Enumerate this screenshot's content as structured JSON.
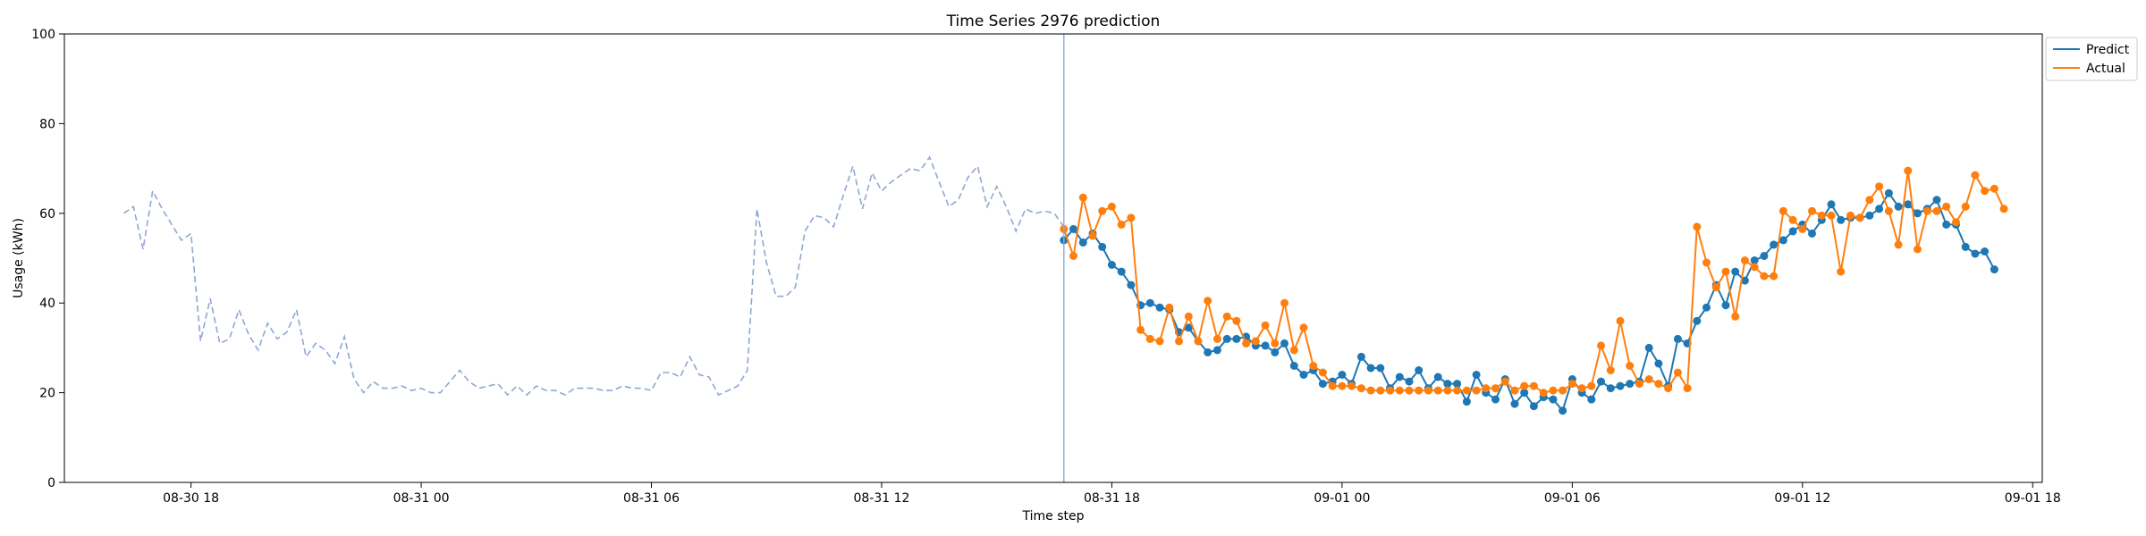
{
  "chart_data": {
    "type": "line",
    "title": "Time Series 2976 prediction",
    "xlabel": "Time step",
    "ylabel": "Usage (kWh)",
    "ylim": [
      0,
      100
    ],
    "xlim": [
      "08-30 14:42",
      "09-01 18:15"
    ],
    "yticks": [
      0,
      20,
      40,
      60,
      80,
      100
    ],
    "xticks": [
      {
        "t": "08-30 18:00",
        "label": "08-30 18"
      },
      {
        "t": "08-31 00:00",
        "label": "08-31 00"
      },
      {
        "t": "08-31 06:00",
        "label": "08-31 06"
      },
      {
        "t": "08-31 12:00",
        "label": "08-31 12"
      },
      {
        "t": "08-31 18:00",
        "label": "08-31 18"
      },
      {
        "t": "09-01 00:00",
        "label": "09-01 00"
      },
      {
        "t": "09-01 06:00",
        "label": "09-01 06"
      },
      {
        "t": "09-01 12:00",
        "label": "09-01 12"
      },
      {
        "t": "09-01 18:00",
        "label": "09-01 18"
      }
    ],
    "forecast_start": "08-31 16:45",
    "interval_minutes": 15,
    "grid": false,
    "legend_position": "outside top-right",
    "history": {
      "start": "08-30 16:15",
      "values": [
        60,
        61.5,
        52,
        65,
        61,
        57.5,
        54,
        55.5,
        31.5,
        41,
        31,
        32,
        38.5,
        33,
        29.5,
        35.5,
        32,
        33.5,
        38.5,
        28,
        31,
        29.5,
        26.5,
        32.5,
        23,
        20,
        22.5,
        21,
        21,
        21.5,
        20.5,
        21,
        20,
        20,
        22.5,
        25,
        22.5,
        21,
        21.5,
        22,
        19.5,
        21.5,
        19.5,
        21.5,
        20.5,
        20.5,
        19.5,
        21,
        21,
        21,
        20.5,
        20.5,
        21.5,
        21,
        21,
        20.5,
        24.5,
        24.5,
        23.5,
        28,
        24,
        23.5,
        19.5,
        20.5,
        21.5,
        25,
        61,
        49,
        41.5,
        41.5,
        43.5,
        56,
        59.5,
        59,
        57,
        64,
        70.5,
        61,
        69,
        65,
        67,
        68.5,
        70,
        69.5,
        72.5,
        67,
        61.5,
        63,
        68,
        70.5,
        61.5,
        66,
        61.5,
        56,
        61,
        60,
        60.5,
        60,
        57
      ]
    },
    "series": [
      {
        "name": "Predict",
        "color": "#1f77b4",
        "values": [
          54,
          56.5,
          53.5,
          55.5,
          52.5,
          48.5,
          47,
          44,
          39.5,
          40,
          39,
          38.5,
          33.5,
          34.5,
          31.5,
          29,
          29.5,
          32,
          32,
          32.5,
          30.5,
          30.5,
          29,
          31,
          26,
          24,
          25,
          22,
          22.5,
          24,
          22,
          28,
          25.5,
          25.5,
          21,
          23.5,
          22.5,
          25,
          21,
          23.5,
          22,
          22,
          18,
          24,
          20,
          18.5,
          23,
          17.5,
          20,
          17,
          19,
          18.5,
          16,
          23,
          20,
          18.5,
          22.5,
          21,
          21.5,
          22,
          22.5,
          30,
          26.5,
          21.5,
          32,
          31,
          36,
          39,
          44,
          39.5,
          47,
          45,
          49.5,
          50.5,
          53,
          54,
          56,
          57.5,
          55.5,
          58.5,
          62,
          58.5,
          59,
          59,
          59.5,
          61,
          64.5,
          61.5,
          62,
          60,
          61,
          63,
          57.5,
          57.5,
          52.5,
          51,
          51.5,
          47.5
        ]
      },
      {
        "name": "Actual",
        "color": "#ff7f0e",
        "values": [
          56.5,
          50.5,
          63.5,
          55,
          60.5,
          61.5,
          57.5,
          59,
          34,
          32,
          31.5,
          39,
          31.5,
          37,
          31.5,
          40.5,
          32,
          37,
          36,
          31,
          31.5,
          35,
          31,
          40,
          29.5,
          34.5,
          26,
          24.5,
          21.5,
          21.5,
          21.5,
          21,
          20.5,
          20.5,
          20.5,
          20.5,
          20.5,
          20.5,
          20.5,
          20.5,
          20.5,
          20.5,
          20.5,
          20.5,
          21,
          21,
          22.5,
          20.5,
          21.5,
          21.5,
          20,
          20.5,
          20.5,
          22,
          21,
          21.5,
          30.5,
          25,
          36,
          26,
          22,
          23,
          22,
          21,
          24.5,
          21,
          57,
          49,
          43.5,
          47,
          37,
          49.5,
          48,
          46,
          46,
          60.5,
          58.5,
          56.5,
          60.5,
          59.5,
          59.5,
          47,
          59.5,
          59,
          63,
          66,
          60.5,
          53,
          69.5,
          52,
          60.5,
          60.5,
          61.5,
          58,
          61.5,
          68.5,
          65,
          65.5,
          61
        ]
      }
    ],
    "history_color": "#8fa8d2"
  }
}
